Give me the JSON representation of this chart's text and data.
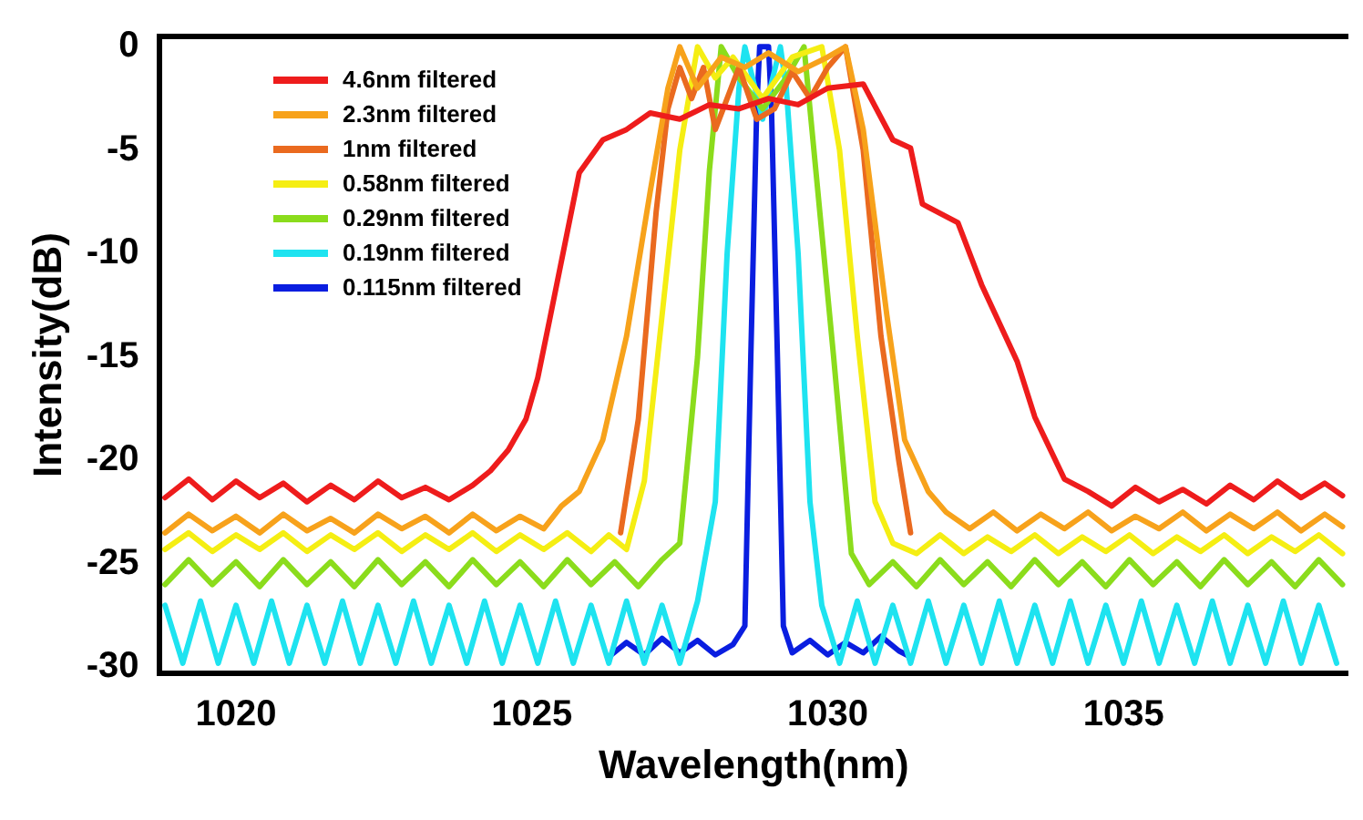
{
  "chart_data": {
    "type": "line",
    "xlabel": "Wavelength(nm)",
    "ylabel": "Intensity(dB)",
    "xlim": [
      1018.7,
      1038.8
    ],
    "ylim": [
      -30.3,
      0.5
    ],
    "xticks": [
      1020,
      1025,
      1030,
      1035
    ],
    "yticks": [
      0,
      -5,
      -10,
      -15,
      -20,
      -25,
      -30
    ],
    "grid": false,
    "legend": "top left",
    "marker": "none",
    "line_style": "solid",
    "series": [
      {
        "name": "4.6nm filtered",
        "color": "#ee1c1c",
        "x": [
          1018.8,
          1019.2,
          1019.6,
          1020,
          1020.4,
          1020.8,
          1021.2,
          1021.6,
          1022,
          1022.4,
          1022.8,
          1023.2,
          1023.6,
          1024,
          1024.3,
          1024.6,
          1024.9,
          1025.1,
          1025.3,
          1025.8,
          1026.2,
          1026.6,
          1027,
          1027.5,
          1028,
          1028.5,
          1029,
          1029.5,
          1030,
          1030.6,
          1031.1,
          1031.4,
          1031.6,
          1032.2,
          1032.6,
          1033.2,
          1033.5,
          1034,
          1034.4,
          1034.8,
          1035.2,
          1035.6,
          1036,
          1036.4,
          1036.8,
          1037.2,
          1037.6,
          1038,
          1038.4,
          1038.7
        ],
        "values": [
          -21.8,
          -20.9,
          -21.9,
          -21,
          -21.8,
          -21.1,
          -22,
          -21.2,
          -21.9,
          -21,
          -21.8,
          -21.3,
          -21.9,
          -21.2,
          -20.5,
          -19.5,
          -18,
          -16,
          -13.2,
          -6.1,
          -4.5,
          -4,
          -3.2,
          -3.5,
          -2.8,
          -3,
          -2.5,
          -2.8,
          -2,
          -1.8,
          -4.5,
          -4.9,
          -7.6,
          -8.5,
          -11.5,
          -15.2,
          -17.9,
          -20.9,
          -21.5,
          -22.2,
          -21.3,
          -22,
          -21.4,
          -22.1,
          -21.2,
          -21.9,
          -21,
          -21.8,
          -21.1,
          -21.7
        ]
      },
      {
        "name": "2.3nm filtered",
        "color": "#f7a21b",
        "x": [
          1018.8,
          1019.2,
          1019.6,
          1020,
          1020.4,
          1020.8,
          1021.2,
          1021.6,
          1022,
          1022.4,
          1022.8,
          1023.2,
          1023.6,
          1024,
          1024.4,
          1024.8,
          1025.2,
          1025.5,
          1025.8,
          1026.2,
          1026.6,
          1027,
          1027.3,
          1027.5,
          1027.8,
          1028.2,
          1028.6,
          1029,
          1029.5,
          1030,
          1030.3,
          1030.6,
          1031,
          1031.3,
          1031.7,
          1032,
          1032.4,
          1032.8,
          1033.2,
          1033.6,
          1034,
          1034.4,
          1034.8,
          1035.2,
          1035.6,
          1036,
          1036.4,
          1036.8,
          1037.2,
          1037.6,
          1038,
          1038.4,
          1038.7
        ],
        "values": [
          -23.5,
          -22.6,
          -23.4,
          -22.7,
          -23.5,
          -22.6,
          -23.4,
          -22.8,
          -23.5,
          -22.6,
          -23.3,
          -22.7,
          -23.5,
          -22.6,
          -23.4,
          -22.7,
          -23.3,
          -22.2,
          -21.5,
          -19,
          -14,
          -7,
          -2,
          0,
          -2,
          -0.5,
          -1,
          -0.3,
          -1.2,
          -0.5,
          0,
          -4,
          -13,
          -19,
          -21.5,
          -22.5,
          -23.3,
          -22.5,
          -23.4,
          -22.6,
          -23.3,
          -22.5,
          -23.4,
          -22.7,
          -23.3,
          -22.5,
          -23.4,
          -22.6,
          -23.3,
          -22.5,
          -23.4,
          -22.6,
          -23.2
        ]
      },
      {
        "name": "1nm filtered",
        "color": "#ea6a1f",
        "x": [
          1026.5,
          1026.8,
          1027.1,
          1027.3,
          1027.5,
          1027.7,
          1027.9,
          1028.1,
          1028.3,
          1028.5,
          1028.8,
          1029.1,
          1029.4,
          1029.7,
          1030,
          1030.3,
          1030.6,
          1030.9,
          1031.2,
          1031.4
        ],
        "values": [
          -23.5,
          -18,
          -8,
          -3,
          -1,
          -2.5,
          -1,
          -4,
          -2.5,
          -1,
          -3.5,
          -3,
          -1.2,
          -2.5,
          -1,
          0,
          -5,
          -14,
          -20,
          -23.5
        ]
      },
      {
        "name": "0.58nm filtered",
        "color": "#f5ee13",
        "x": [
          1018.8,
          1019.2,
          1019.6,
          1020,
          1020.4,
          1020.8,
          1021.2,
          1021.6,
          1022,
          1022.4,
          1022.8,
          1023.2,
          1023.6,
          1024,
          1024.4,
          1024.8,
          1025.2,
          1025.6,
          1026,
          1026.3,
          1026.6,
          1026.9,
          1027.2,
          1027.5,
          1027.8,
          1028.1,
          1028.4,
          1028.9,
          1029.4,
          1029.9,
          1030.2,
          1030.5,
          1030.8,
          1031.1,
          1031.5,
          1031.9,
          1032.3,
          1032.7,
          1033.1,
          1033.5,
          1033.9,
          1034.3,
          1034.7,
          1035.1,
          1035.5,
          1035.9,
          1036.3,
          1036.7,
          1037.1,
          1037.5,
          1037.9,
          1038.3,
          1038.7
        ],
        "values": [
          -24.3,
          -23.5,
          -24.4,
          -23.6,
          -24.3,
          -23.5,
          -24.4,
          -23.6,
          -24.3,
          -23.5,
          -24.4,
          -23.6,
          -24.3,
          -23.5,
          -24.4,
          -23.6,
          -24.3,
          -23.5,
          -24.4,
          -23.6,
          -24.3,
          -21,
          -13,
          -5,
          0,
          -1.5,
          -0.5,
          -2.5,
          -0.5,
          0,
          -5,
          -14,
          -22,
          -24,
          -24.5,
          -23.6,
          -24.5,
          -23.7,
          -24.4,
          -23.6,
          -24.5,
          -23.7,
          -24.4,
          -23.6,
          -24.5,
          -23.7,
          -24.4,
          -23.6,
          -24.5,
          -23.7,
          -24.4,
          -23.6,
          -24.5
        ]
      },
      {
        "name": "0.29nm filtered",
        "color": "#8bdc1c",
        "x": [
          1018.8,
          1019.2,
          1019.6,
          1020,
          1020.4,
          1020.8,
          1021.2,
          1021.6,
          1022,
          1022.4,
          1022.8,
          1023.2,
          1023.6,
          1024,
          1024.4,
          1024.8,
          1025.2,
          1025.6,
          1026,
          1026.4,
          1026.8,
          1027.2,
          1027.5,
          1027.8,
          1028,
          1028.2,
          1028.5,
          1028.9,
          1029.3,
          1029.6,
          1029.8,
          1030.1,
          1030.4,
          1030.7,
          1031.1,
          1031.5,
          1031.9,
          1032.3,
          1032.7,
          1033.1,
          1033.5,
          1033.9,
          1034.3,
          1034.7,
          1035.1,
          1035.5,
          1035.9,
          1036.3,
          1036.7,
          1037.1,
          1037.5,
          1037.9,
          1038.3,
          1038.7
        ],
        "values": [
          -26,
          -24.8,
          -26,
          -24.9,
          -26.1,
          -24.8,
          -26,
          -24.9,
          -26.1,
          -24.8,
          -26,
          -24.9,
          -26.1,
          -24.8,
          -26,
          -24.9,
          -26.1,
          -24.8,
          -26,
          -24.9,
          -26.1,
          -24.8,
          -24,
          -15,
          -6,
          0,
          -1.5,
          -3,
          -1.5,
          0,
          -6,
          -15,
          -24.5,
          -26,
          -24.9,
          -26.1,
          -24.8,
          -26,
          -24.9,
          -26.1,
          -24.8,
          -26,
          -24.9,
          -26.1,
          -24.8,
          -26,
          -24.9,
          -26.1,
          -24.8,
          -26,
          -24.9,
          -26.1,
          -24.8,
          -26
        ]
      },
      {
        "name": "0.19nm filtered",
        "color": "#1ee3f0",
        "x": [
          1018.8,
          1019.1,
          1019.4,
          1019.7,
          1020,
          1020.3,
          1020.6,
          1020.9,
          1021.2,
          1021.5,
          1021.8,
          1022.1,
          1022.4,
          1022.7,
          1023,
          1023.3,
          1023.6,
          1023.9,
          1024.2,
          1024.5,
          1024.8,
          1025.1,
          1025.4,
          1025.7,
          1026,
          1026.3,
          1026.6,
          1026.9,
          1027.2,
          1027.5,
          1027.8,
          1028.1,
          1028.3,
          1028.5,
          1028.6,
          1028.9,
          1029.2,
          1029.3,
          1029.5,
          1029.7,
          1029.9,
          1030.2,
          1030.5,
          1030.8,
          1031.1,
          1031.4,
          1031.7,
          1032,
          1032.3,
          1032.6,
          1032.9,
          1033.2,
          1033.5,
          1033.8,
          1034.1,
          1034.4,
          1034.7,
          1035,
          1035.3,
          1035.6,
          1035.9,
          1036.2,
          1036.5,
          1036.8,
          1037.1,
          1037.4,
          1037.7,
          1038,
          1038.3,
          1038.6
        ],
        "values": [
          -27,
          -29.8,
          -26.8,
          -29.8,
          -27,
          -29.8,
          -26.8,
          -29.8,
          -27,
          -29.8,
          -26.8,
          -29.8,
          -27,
          -29.8,
          -26.8,
          -29.8,
          -27,
          -29.8,
          -26.8,
          -29.8,
          -27,
          -29.8,
          -26.8,
          -29.8,
          -27,
          -29.8,
          -26.8,
          -29.8,
          -27,
          -29.8,
          -26.8,
          -22,
          -10,
          -2,
          0,
          -3.5,
          0,
          -2,
          -10,
          -22,
          -27,
          -29.8,
          -26.8,
          -29.8,
          -27,
          -29.8,
          -26.8,
          -29.8,
          -27,
          -29.8,
          -26.8,
          -29.8,
          -27,
          -29.8,
          -26.8,
          -29.8,
          -27,
          -29.8,
          -26.8,
          -29.8,
          -27,
          -29.8,
          -26.8,
          -29.8,
          -27,
          -29.8,
          -26.8,
          -29.8,
          -27,
          -29.8
        ]
      },
      {
        "name": "0.115nm filtered",
        "color": "#0a1ee0",
        "x": [
          1026.3,
          1026.6,
          1026.9,
          1027.2,
          1027.5,
          1027.8,
          1028.1,
          1028.4,
          1028.6,
          1028.7,
          1028.8,
          1028.85,
          1029,
          1029.05,
          1029.15,
          1029.25,
          1029.4,
          1029.7,
          1030,
          1030.3,
          1030.6,
          1030.9,
          1031.2,
          1031.4
        ],
        "values": [
          -29.5,
          -28.8,
          -29.4,
          -28.6,
          -29.3,
          -28.7,
          -29.4,
          -28.9,
          -28,
          -15,
          -3,
          0,
          0,
          -3,
          -15,
          -28,
          -29.3,
          -28.7,
          -29.4,
          -28.8,
          -29.3,
          -28.5,
          -29.2,
          -29.5
        ]
      }
    ]
  }
}
